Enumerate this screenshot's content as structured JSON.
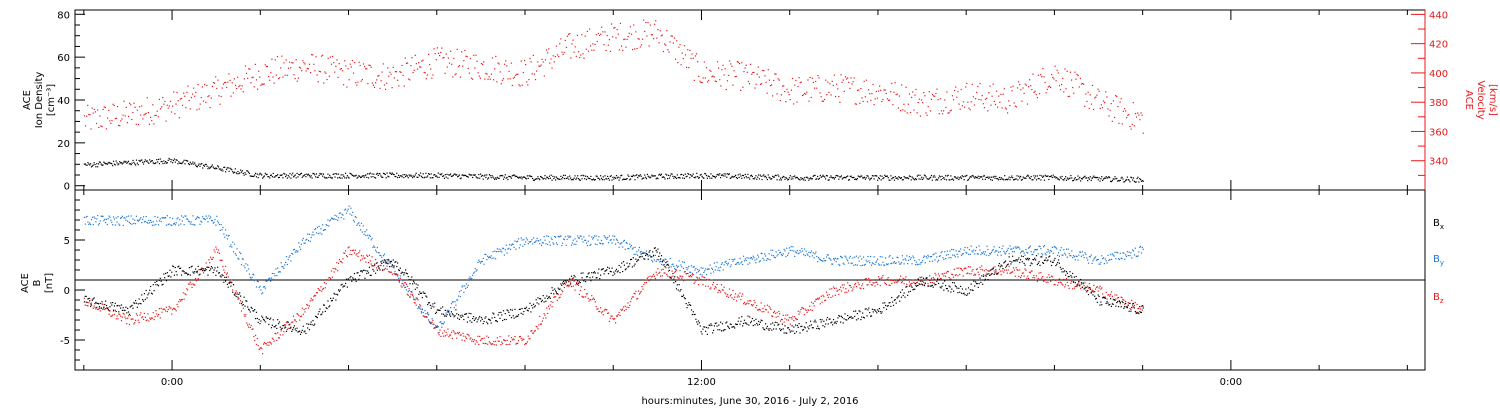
{
  "chart_data": [
    {
      "type": "scatter",
      "panel": "top",
      "ylabel_left": [
        "ACE",
        "Ion Density",
        "[cm⁻³]"
      ],
      "ylabel_right": [
        "ACE",
        "Velocity",
        "[km/s]"
      ],
      "ylim_left": [
        -2,
        82
      ],
      "ylim_right": [
        320,
        443
      ],
      "yticks_left": [
        "0",
        "20",
        "40",
        "60",
        "80"
      ],
      "yticks_right": [
        "340",
        "360",
        "380",
        "400",
        "420",
        "440"
      ],
      "series": [
        {
          "axis": "left",
          "color": "#000000",
          "x_hours": [
            -2,
            0,
            2,
            4,
            6,
            8,
            10,
            12,
            14,
            16,
            18,
            20,
            22
          ],
          "values": [
            10,
            12,
            5,
            5,
            5,
            4,
            4,
            5,
            4,
            4,
            4,
            4,
            3
          ]
        },
        {
          "axis": "right",
          "color": "#e41a1c",
          "x_hours": [
            -2,
            -1,
            0,
            1,
            2,
            3,
            4,
            5,
            6,
            7,
            8,
            9,
            10,
            11,
            12,
            13,
            14,
            15,
            16,
            17,
            18,
            19,
            20,
            21,
            22
          ],
          "values": [
            368,
            372,
            378,
            388,
            400,
            405,
            400,
            398,
            408,
            405,
            400,
            418,
            425,
            428,
            400,
            398,
            388,
            390,
            388,
            380,
            385,
            382,
            400,
            380,
            368
          ]
        }
      ]
    },
    {
      "type": "scatter",
      "panel": "bottom",
      "ylabel_left": [
        "ACE",
        "B",
        "[nT]"
      ],
      "ylim": [
        -8,
        10
      ],
      "yticks": [
        "-5",
        "0",
        "5"
      ],
      "legend": [
        {
          "label": "B",
          "sub": "x",
          "color": "#000000"
        },
        {
          "label": "B",
          "sub": "y",
          "color": "#1f78d1"
        },
        {
          "label": "B",
          "sub": "z",
          "color": "#e41a1c"
        }
      ],
      "series": [
        {
          "name": "Bx",
          "color": "#000000",
          "x_hours": [
            -2,
            -1,
            0,
            1,
            2,
            3,
            4,
            5,
            6,
            7,
            8,
            9,
            10,
            11,
            12,
            13,
            14,
            15,
            16,
            17,
            18,
            19,
            20,
            21,
            22
          ],
          "values": [
            -1,
            -2,
            2,
            2,
            -3,
            -4,
            1,
            3,
            -2,
            -3,
            -2,
            1,
            2,
            4,
            -4,
            -3,
            -4,
            -3,
            -2,
            1,
            0,
            3,
            3,
            -1,
            -2
          ]
        },
        {
          "name": "By",
          "color": "#1f78d1",
          "x_hours": [
            -2,
            -1,
            0,
            1,
            2,
            3,
            4,
            5,
            6,
            7,
            8,
            9,
            10,
            11,
            12,
            13,
            14,
            15,
            16,
            17,
            18,
            19,
            20,
            21,
            22
          ],
          "values": [
            7,
            7,
            7,
            7,
            0,
            5,
            8,
            2,
            -4,
            3,
            5,
            5,
            5,
            3,
            2,
            3,
            4,
            3,
            3,
            3,
            4,
            4,
            4,
            3,
            4
          ]
        },
        {
          "name": "Bz",
          "color": "#e41a1c",
          "x_hours": [
            -2,
            -1,
            0,
            1,
            2,
            3,
            4,
            5,
            6,
            7,
            8,
            9,
            10,
            11,
            12,
            13,
            14,
            15,
            16,
            17,
            18,
            19,
            20,
            21,
            22
          ],
          "values": [
            -1,
            -3,
            -2,
            4,
            -6,
            -2,
            4,
            2,
            -4,
            -5,
            -5,
            1,
            -3,
            2,
            1,
            -1,
            -3,
            0,
            1,
            1,
            2,
            2,
            1,
            0,
            -2
          ]
        }
      ]
    }
  ],
  "xaxis": {
    "title": "hours:minutes, June 30, 2016 - July  2, 2016",
    "tick_labels": [
      "0:00",
      "12:00",
      "0:00"
    ],
    "range_hours": [
      -2.2,
      28.4
    ]
  }
}
